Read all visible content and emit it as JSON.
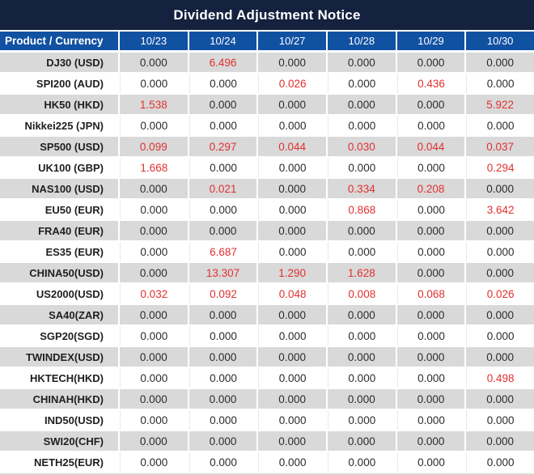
{
  "chart_data": {
    "type": "table",
    "title": "Dividend Adjustment Notice",
    "columns": [
      "Product / Currency",
      "10/23",
      "10/24",
      "10/27",
      "10/28",
      "10/29",
      "10/30"
    ],
    "rows": [
      {
        "product": "DJ30 (USD)",
        "values": [
          "0.000",
          "6.496",
          "0.000",
          "0.000",
          "0.000",
          "0.000"
        ],
        "red": [
          false,
          true,
          false,
          false,
          false,
          false
        ]
      },
      {
        "product": "SPI200 (AUD)",
        "values": [
          "0.000",
          "0.000",
          "0.026",
          "0.000",
          "0.436",
          "0.000"
        ],
        "red": [
          false,
          false,
          true,
          false,
          true,
          false
        ]
      },
      {
        "product": "HK50 (HKD)",
        "values": [
          "1.538",
          "0.000",
          "0.000",
          "0.000",
          "0.000",
          "5.922"
        ],
        "red": [
          true,
          false,
          false,
          false,
          false,
          true
        ]
      },
      {
        "product": "Nikkei225 (JPN)",
        "values": [
          "0.000",
          "0.000",
          "0.000",
          "0.000",
          "0.000",
          "0.000"
        ],
        "red": [
          false,
          false,
          false,
          false,
          false,
          false
        ]
      },
      {
        "product": "SP500 (USD)",
        "values": [
          "0.099",
          "0.297",
          "0.044",
          "0.030",
          "0.044",
          "0.037"
        ],
        "red": [
          true,
          true,
          true,
          true,
          true,
          true
        ]
      },
      {
        "product": "UK100 (GBP)",
        "values": [
          "1.668",
          "0.000",
          "0.000",
          "0.000",
          "0.000",
          "0.294"
        ],
        "red": [
          true,
          false,
          false,
          false,
          false,
          true
        ]
      },
      {
        "product": "NAS100 (USD)",
        "values": [
          "0.000",
          "0.021",
          "0.000",
          "0.334",
          "0.208",
          "0.000"
        ],
        "red": [
          false,
          true,
          false,
          true,
          true,
          false
        ]
      },
      {
        "product": "EU50 (EUR)",
        "values": [
          "0.000",
          "0.000",
          "0.000",
          "0.868",
          "0.000",
          "3.642"
        ],
        "red": [
          false,
          false,
          false,
          true,
          false,
          true
        ]
      },
      {
        "product": "FRA40 (EUR)",
        "values": [
          "0.000",
          "0.000",
          "0.000",
          "0.000",
          "0.000",
          "0.000"
        ],
        "red": [
          false,
          false,
          false,
          false,
          false,
          false
        ]
      },
      {
        "product": "ES35 (EUR)",
        "values": [
          "0.000",
          "6.687",
          "0.000",
          "0.000",
          "0.000",
          "0.000"
        ],
        "red": [
          false,
          true,
          false,
          false,
          false,
          false
        ]
      },
      {
        "product": "CHINA50(USD)",
        "values": [
          "0.000",
          "13.307",
          "1.290",
          "1.628",
          "0.000",
          "0.000"
        ],
        "red": [
          false,
          true,
          true,
          true,
          false,
          false
        ]
      },
      {
        "product": "US2000(USD)",
        "values": [
          "0.032",
          "0.092",
          "0.048",
          "0.008",
          "0.068",
          "0.026"
        ],
        "red": [
          true,
          true,
          true,
          true,
          true,
          true
        ]
      },
      {
        "product": "SA40(ZAR)",
        "values": [
          "0.000",
          "0.000",
          "0.000",
          "0.000",
          "0.000",
          "0.000"
        ],
        "red": [
          false,
          false,
          false,
          false,
          false,
          false
        ]
      },
      {
        "product": "SGP20(SGD)",
        "values": [
          "0.000",
          "0.000",
          "0.000",
          "0.000",
          "0.000",
          "0.000"
        ],
        "red": [
          false,
          false,
          false,
          false,
          false,
          false
        ]
      },
      {
        "product": "TWINDEX(USD)",
        "values": [
          "0.000",
          "0.000",
          "0.000",
          "0.000",
          "0.000",
          "0.000"
        ],
        "red": [
          false,
          false,
          false,
          false,
          false,
          false
        ]
      },
      {
        "product": "HKTECH(HKD)",
        "values": [
          "0.000",
          "0.000",
          "0.000",
          "0.000",
          "0.000",
          "0.498"
        ],
        "red": [
          false,
          false,
          false,
          false,
          false,
          true
        ]
      },
      {
        "product": "CHINAH(HKD)",
        "values": [
          "0.000",
          "0.000",
          "0.000",
          "0.000",
          "0.000",
          "0.000"
        ],
        "red": [
          false,
          false,
          false,
          false,
          false,
          false
        ]
      },
      {
        "product": "IND50(USD)",
        "values": [
          "0.000",
          "0.000",
          "0.000",
          "0.000",
          "0.000",
          "0.000"
        ],
        "red": [
          false,
          false,
          false,
          false,
          false,
          false
        ]
      },
      {
        "product": "SWI20(CHF)",
        "values": [
          "0.000",
          "0.000",
          "0.000",
          "0.000",
          "0.000",
          "0.000"
        ],
        "red": [
          false,
          false,
          false,
          false,
          false,
          false
        ]
      },
      {
        "product": "NETH25(EUR)",
        "values": [
          "0.000",
          "0.000",
          "0.000",
          "0.000",
          "0.000",
          "0.000"
        ],
        "red": [
          false,
          false,
          false,
          false,
          false,
          false
        ]
      }
    ],
    "layout": {
      "striping": "alternating gray/white starting gray",
      "red_means": "non-zero dividend adjustment"
    }
  },
  "colors": {
    "title_bg": "#14213F",
    "header_bg": "#1151A2",
    "row_stripe": "#D9D9D9",
    "row_white": "#FFFFFF",
    "value_red": "#E23030",
    "value_dark": "#2B2B2B"
  }
}
